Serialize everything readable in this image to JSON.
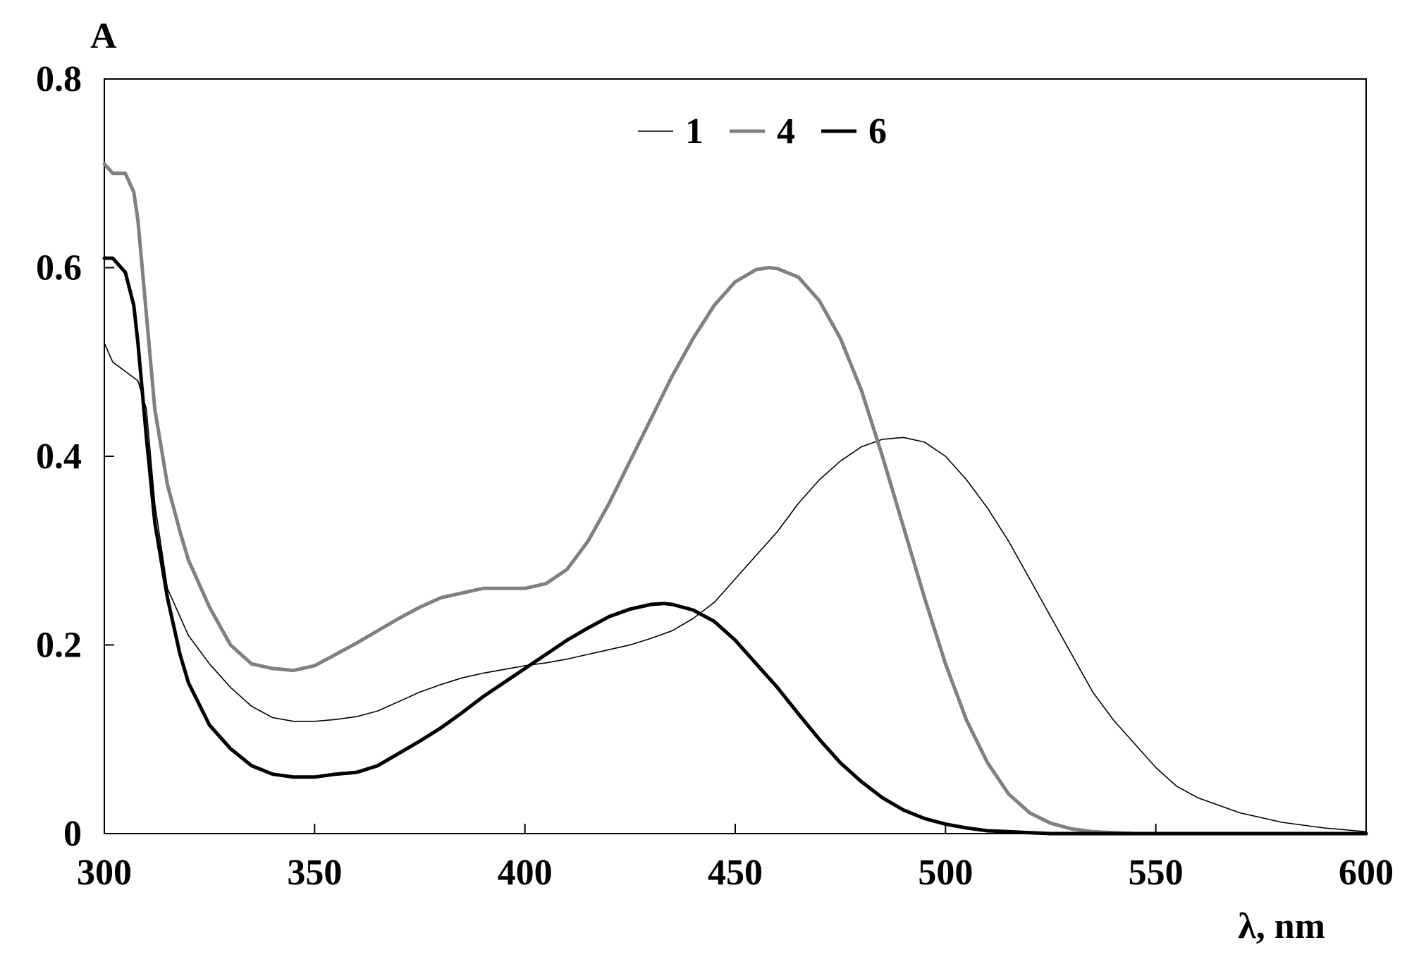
{
  "chart_data": {
    "type": "line",
    "title": "",
    "ylabel": "A",
    "xlabel": "λ, nm",
    "xlim": [
      300,
      600
    ],
    "ylim": [
      0,
      0.8
    ],
    "x_ticks": [
      "300",
      "350",
      "400",
      "450",
      "500",
      "550",
      "600"
    ],
    "y_ticks": [
      "0",
      "0.2",
      "0.4",
      "0.6",
      "0.8"
    ],
    "grid": false,
    "legend_position": "top-center",
    "series": [
      {
        "name": "1",
        "color": "#000000",
        "style": "thin",
        "x": [
          300,
          302,
          305,
          308,
          310,
          312,
          315,
          318,
          320,
          325,
          330,
          335,
          340,
          345,
          350,
          355,
          360,
          365,
          370,
          375,
          380,
          385,
          390,
          395,
          400,
          405,
          410,
          415,
          420,
          425,
          430,
          435,
          440,
          445,
          450,
          455,
          460,
          465,
          470,
          475,
          480,
          485,
          490,
          495,
          500,
          505,
          510,
          515,
          520,
          525,
          530,
          535,
          540,
          545,
          550,
          555,
          560,
          570,
          580,
          590,
          600
        ],
        "y": [
          0.52,
          0.5,
          0.49,
          0.48,
          0.45,
          0.35,
          0.26,
          0.23,
          0.21,
          0.18,
          0.155,
          0.135,
          0.123,
          0.119,
          0.119,
          0.121,
          0.124,
          0.13,
          0.14,
          0.15,
          0.158,
          0.165,
          0.17,
          0.174,
          0.178,
          0.181,
          0.185,
          0.19,
          0.195,
          0.2,
          0.207,
          0.215,
          0.228,
          0.245,
          0.27,
          0.295,
          0.32,
          0.35,
          0.375,
          0.395,
          0.41,
          0.418,
          0.42,
          0.415,
          0.4,
          0.375,
          0.345,
          0.31,
          0.27,
          0.23,
          0.19,
          0.15,
          0.12,
          0.095,
          0.07,
          0.05,
          0.038,
          0.022,
          0.012,
          0.006,
          0.002
        ]
      },
      {
        "name": "4",
        "color": "#808080",
        "style": "thick",
        "x": [
          300,
          302,
          305,
          307,
          308,
          310,
          312,
          315,
          318,
          320,
          325,
          330,
          335,
          340,
          345,
          350,
          355,
          360,
          365,
          370,
          375,
          380,
          385,
          390,
          395,
          400,
          405,
          410,
          415,
          420,
          425,
          430,
          435,
          440,
          445,
          450,
          455,
          458,
          460,
          465,
          470,
          475,
          480,
          485,
          490,
          495,
          500,
          505,
          510,
          515,
          520,
          525,
          530,
          535,
          540,
          545,
          550,
          560,
          570,
          600
        ],
        "y": [
          0.71,
          0.7,
          0.7,
          0.68,
          0.65,
          0.55,
          0.45,
          0.37,
          0.32,
          0.29,
          0.24,
          0.2,
          0.18,
          0.175,
          0.173,
          0.178,
          0.19,
          0.202,
          0.215,
          0.228,
          0.24,
          0.25,
          0.255,
          0.26,
          0.26,
          0.26,
          0.265,
          0.28,
          0.31,
          0.35,
          0.395,
          0.44,
          0.485,
          0.525,
          0.56,
          0.585,
          0.598,
          0.6,
          0.599,
          0.59,
          0.565,
          0.525,
          0.47,
          0.4,
          0.325,
          0.25,
          0.18,
          0.12,
          0.075,
          0.042,
          0.022,
          0.011,
          0.005,
          0.002,
          0.001,
          0.0,
          0.0,
          0.0,
          0.0,
          0.0
        ]
      },
      {
        "name": "6",
        "color": "#000000",
        "style": "thick",
        "x": [
          300,
          302,
          305,
          307,
          308,
          310,
          312,
          315,
          318,
          320,
          325,
          330,
          335,
          340,
          345,
          350,
          355,
          360,
          365,
          370,
          375,
          380,
          385,
          390,
          395,
          400,
          405,
          410,
          415,
          420,
          425,
          430,
          433,
          435,
          440,
          445,
          450,
          455,
          460,
          465,
          470,
          475,
          480,
          485,
          490,
          495,
          500,
          505,
          510,
          515,
          520,
          525,
          530,
          540,
          550,
          600
        ],
        "y": [
          0.61,
          0.61,
          0.595,
          0.56,
          0.52,
          0.42,
          0.33,
          0.25,
          0.19,
          0.16,
          0.115,
          0.09,
          0.072,
          0.063,
          0.06,
          0.06,
          0.063,
          0.065,
          0.072,
          0.085,
          0.098,
          0.112,
          0.128,
          0.145,
          0.16,
          0.175,
          0.19,
          0.205,
          0.218,
          0.23,
          0.238,
          0.243,
          0.244,
          0.243,
          0.237,
          0.225,
          0.205,
          0.18,
          0.155,
          0.127,
          0.1,
          0.075,
          0.055,
          0.038,
          0.025,
          0.016,
          0.01,
          0.006,
          0.003,
          0.002,
          0.001,
          0.0,
          0.0,
          0.0,
          0.0,
          0.0
        ]
      }
    ]
  }
}
